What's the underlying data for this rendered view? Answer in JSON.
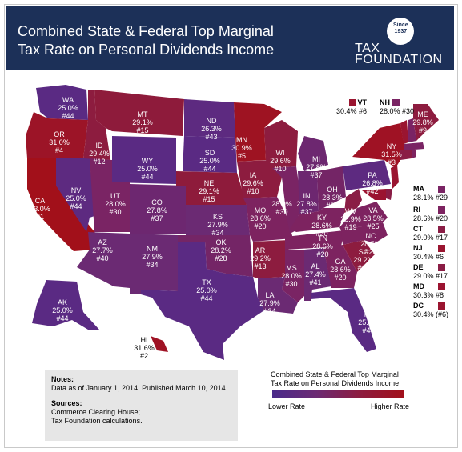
{
  "title_line1": "Combined State & Federal Top Marginal",
  "title_line2": "Tax Rate on Personal Dividends Income",
  "logo": {
    "since": "Since",
    "year": "1937",
    "word1": "TAX",
    "word2": "FOUNDATION"
  },
  "colors": {
    "low": "#4a2a8a",
    "mid_low": "#5d2a80",
    "mid": "#7a2464",
    "mid_high": "#8d1c3f",
    "high": "#a2101a",
    "header": "#1c3058"
  },
  "states": {
    "WA": {
      "rate": "25.0%",
      "rank": "#44"
    },
    "OR": {
      "rate": "31.0%",
      "rank": "#4"
    },
    "CA": {
      "rate": "33.0%",
      "rank": "#1"
    },
    "NV": {
      "rate": "25.0%",
      "rank": "#44"
    },
    "ID": {
      "rate": "29.4%",
      "rank": "#12"
    },
    "MT": {
      "rate": "29.1%",
      "rank": "#15"
    },
    "WY": {
      "rate": "25.0%",
      "rank": "#44"
    },
    "UT": {
      "rate": "28.0%",
      "rank": "#30"
    },
    "AZ": {
      "rate": "27.7%",
      "rank": "#40"
    },
    "CO": {
      "rate": "27.8%",
      "rank": "#37"
    },
    "NM": {
      "rate": "27.9%",
      "rank": "#34"
    },
    "ND": {
      "rate": "26.3%",
      "rank": "#43"
    },
    "SD": {
      "rate": "25.0%",
      "rank": "#44"
    },
    "NE": {
      "rate": "29.1%",
      "rank": "#15"
    },
    "KS": {
      "rate": "27.9%",
      "rank": "#34"
    },
    "OK": {
      "rate": "28.2%",
      "rank": "#28"
    },
    "TX": {
      "rate": "25.0%",
      "rank": "#44"
    },
    "MN": {
      "rate": "30.9%",
      "rank": "#5"
    },
    "IA": {
      "rate": "29.6%",
      "rank": "#10"
    },
    "MO": {
      "rate": "28.6%",
      "rank": "#20"
    },
    "AR": {
      "rate": "29.2%",
      "rank": "#13"
    },
    "LA": {
      "rate": "27.9%",
      "rank": "#34"
    },
    "WI": {
      "rate": "29.6%",
      "rank": "#10"
    },
    "IL": {
      "rate": "28.0%",
      "rank": "#30"
    },
    "MI": {
      "rate": "27.8%",
      "rank": "#37"
    },
    "IN": {
      "rate": "27.8%",
      "rank": "#37"
    },
    "OH": {
      "rate": "28.3%",
      "rank": "#27"
    },
    "KY": {
      "rate": "28.6%",
      "rank": "#20"
    },
    "TN": {
      "rate": "28.6%",
      "rank": "#20"
    },
    "MS": {
      "rate": "28.0%",
      "rank": "#30"
    },
    "AL": {
      "rate": "27.4%",
      "rank": "#41"
    },
    "GA": {
      "rate": "28.6%",
      "rank": "#20"
    },
    "FL": {
      "rate": "25.0%",
      "rank": "#44"
    },
    "SC": {
      "rate": "29.2%",
      "rank": "#13"
    },
    "NC": {
      "rate": "28.5%",
      "rank": "#25"
    },
    "VA": {
      "rate": "28.5%",
      "rank": "#25"
    },
    "WV": {
      "rate": "28.9%",
      "rank": "#19"
    },
    "PA": {
      "rate": "26.8%",
      "rank": "#42"
    },
    "NY": {
      "rate": "31.5%",
      "rank": "#3"
    },
    "VT": {
      "rate": "30.4%",
      "rank": "#6"
    },
    "NH": {
      "rate": "28.0%",
      "rank": "#30"
    },
    "ME": {
      "rate": "29.8%",
      "rank": "#9"
    },
    "MA": {
      "rate": "28.1%",
      "rank": "#29"
    },
    "RI": {
      "rate": "28.6%",
      "rank": "#20"
    },
    "CT": {
      "rate": "29.0%",
      "rank": "#17"
    },
    "NJ": {
      "rate": "30.4%",
      "rank": "#6"
    },
    "DE": {
      "rate": "29.0%",
      "rank": "#17"
    },
    "MD": {
      "rate": "30.3%",
      "rank": "#8"
    },
    "DC": {
      "rate": "30.4%",
      "rank": "(#6)"
    },
    "AK": {
      "rate": "25.0%",
      "rank": "#44"
    },
    "HI": {
      "rate": "31.6%",
      "rank": "#2"
    }
  },
  "notes": {
    "notes_heading": "Notes:",
    "notes_text": "Data as of January 1, 2014. Published March 10, 2014.",
    "sources_heading": "Sources:",
    "sources_line1": "Commerce Clearing House;",
    "sources_line2": "Tax Foundation calculations."
  },
  "legend": {
    "title_line1": "Combined State & Federal Top Marginal",
    "title_line2": "Tax Rate on Personal Dividends Income",
    "low": "Lower Rate",
    "high": "Higher Rate"
  }
}
